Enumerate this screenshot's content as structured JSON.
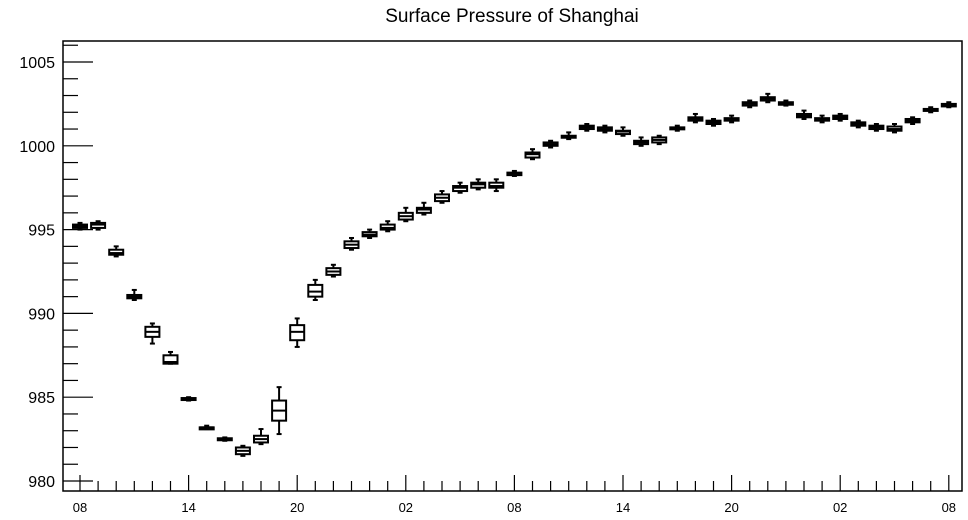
{
  "chart_data": {
    "type": "box",
    "title": "Surface Pressure of Shanghai",
    "xlabel": "",
    "ylabel": "",
    "ylim": [
      980,
      1006.2
    ],
    "y_ticks": [
      980,
      985,
      990,
      995,
      1000,
      1005
    ],
    "x_tick_labels": [
      "08",
      "14",
      "20",
      "02",
      "08",
      "14",
      "20",
      "02",
      "08"
    ],
    "x_tick_positions": [
      0,
      6,
      12,
      18,
      24,
      30,
      36,
      42,
      48
    ],
    "grid": false,
    "legend": "none",
    "boxes": [
      {
        "x": 0,
        "min": 995.0,
        "q1": 995.1,
        "median": 995.2,
        "q3": 995.3,
        "max": 995.4
      },
      {
        "x": 1,
        "min": 995.0,
        "q1": 995.1,
        "median": 995.3,
        "q3": 995.4,
        "max": 995.5
      },
      {
        "x": 2,
        "min": 993.4,
        "q1": 993.5,
        "median": 993.6,
        "q3": 993.8,
        "max": 994.0
      },
      {
        "x": 3,
        "min": 990.8,
        "q1": 990.9,
        "median": 991.0,
        "q3": 991.1,
        "max": 991.4
      },
      {
        "x": 4,
        "min": 988.2,
        "q1": 988.6,
        "median": 988.9,
        "q3": 989.2,
        "max": 989.4
      },
      {
        "x": 5,
        "min": 987.0,
        "q1": 987.0,
        "median": 987.1,
        "q3": 987.5,
        "max": 987.7
      },
      {
        "x": 6,
        "min": 984.8,
        "q1": 984.85,
        "median": 984.9,
        "q3": 984.95,
        "max": 985.0
      },
      {
        "x": 7,
        "min": 983.1,
        "q1": 983.1,
        "median": 983.2,
        "q3": 983.2,
        "max": 983.3
      },
      {
        "x": 8,
        "min": 982.4,
        "q1": 982.45,
        "median": 982.5,
        "q3": 982.55,
        "max": 982.6
      },
      {
        "x": 9,
        "min": 981.5,
        "q1": 981.6,
        "median": 981.8,
        "q3": 982.0,
        "max": 982.1
      },
      {
        "x": 10,
        "min": 982.2,
        "q1": 982.3,
        "median": 982.5,
        "q3": 982.7,
        "max": 983.1
      },
      {
        "x": 11,
        "min": 982.8,
        "q1": 983.6,
        "median": 984.2,
        "q3": 984.8,
        "max": 985.6
      },
      {
        "x": 12,
        "min": 988.0,
        "q1": 988.4,
        "median": 988.9,
        "q3": 989.3,
        "max": 989.7
      },
      {
        "x": 13,
        "min": 990.8,
        "q1": 991.0,
        "median": 991.3,
        "q3": 991.7,
        "max": 992.0
      },
      {
        "x": 14,
        "min": 992.2,
        "q1": 992.3,
        "median": 992.5,
        "q3": 992.7,
        "max": 992.9
      },
      {
        "x": 15,
        "min": 993.8,
        "q1": 993.9,
        "median": 994.1,
        "q3": 994.3,
        "max": 994.5
      },
      {
        "x": 16,
        "min": 994.5,
        "q1": 994.6,
        "median": 994.7,
        "q3": 994.85,
        "max": 995.0
      },
      {
        "x": 17,
        "min": 994.9,
        "q1": 995.0,
        "median": 995.1,
        "q3": 995.3,
        "max": 995.5
      },
      {
        "x": 18,
        "min": 995.5,
        "q1": 995.6,
        "median": 995.8,
        "q3": 996.0,
        "max": 996.3
      },
      {
        "x": 19,
        "min": 995.9,
        "q1": 996.0,
        "median": 996.2,
        "q3": 996.3,
        "max": 996.6
      },
      {
        "x": 20,
        "min": 996.6,
        "q1": 996.7,
        "median": 996.9,
        "q3": 997.1,
        "max": 997.3
      },
      {
        "x": 21,
        "min": 997.2,
        "q1": 997.3,
        "median": 997.5,
        "q3": 997.6,
        "max": 997.8
      },
      {
        "x": 22,
        "min": 997.4,
        "q1": 997.5,
        "median": 997.7,
        "q3": 997.8,
        "max": 998.0
      },
      {
        "x": 23,
        "min": 997.3,
        "q1": 997.5,
        "median": 997.6,
        "q3": 997.8,
        "max": 998.0
      },
      {
        "x": 24,
        "min": 998.2,
        "q1": 998.25,
        "median": 998.35,
        "q3": 998.4,
        "max": 998.5
      },
      {
        "x": 25,
        "min": 999.2,
        "q1": 999.3,
        "median": 999.5,
        "q3": 999.6,
        "max": 999.8
      },
      {
        "x": 26,
        "min": 999.9,
        "q1": 1000.0,
        "median": 1000.1,
        "q3": 1000.2,
        "max": 1000.3
      },
      {
        "x": 27,
        "min": 1000.4,
        "q1": 1000.5,
        "median": 1000.55,
        "q3": 1000.6,
        "max": 1000.8
      },
      {
        "x": 28,
        "min": 1000.9,
        "q1": 1001.0,
        "median": 1001.1,
        "q3": 1001.2,
        "max": 1001.3
      },
      {
        "x": 29,
        "min": 1000.8,
        "q1": 1000.9,
        "median": 1001.0,
        "q3": 1001.1,
        "max": 1001.2
      },
      {
        "x": 30,
        "min": 1000.6,
        "q1": 1000.7,
        "median": 1000.85,
        "q3": 1000.9,
        "max": 1001.1
      },
      {
        "x": 31,
        "min": 1000.0,
        "q1": 1000.1,
        "median": 1000.2,
        "q3": 1000.3,
        "max": 1000.5
      },
      {
        "x": 32,
        "min": 1000.1,
        "q1": 1000.2,
        "median": 1000.35,
        "q3": 1000.5,
        "max": 1000.6
      },
      {
        "x": 33,
        "min": 1000.9,
        "q1": 1001.0,
        "median": 1001.05,
        "q3": 1001.1,
        "max": 1001.2
      },
      {
        "x": 34,
        "min": 1001.4,
        "q1": 1001.5,
        "median": 1001.6,
        "q3": 1001.7,
        "max": 1001.9
      },
      {
        "x": 35,
        "min": 1001.2,
        "q1": 1001.3,
        "median": 1001.4,
        "q3": 1001.5,
        "max": 1001.6
      },
      {
        "x": 36,
        "min": 1001.4,
        "q1": 1001.5,
        "median": 1001.6,
        "q3": 1001.65,
        "max": 1001.8
      },
      {
        "x": 37,
        "min": 1002.3,
        "q1": 1002.4,
        "median": 1002.5,
        "q3": 1002.6,
        "max": 1002.7
      },
      {
        "x": 38,
        "min": 1002.6,
        "q1": 1002.7,
        "median": 1002.8,
        "q3": 1002.9,
        "max": 1003.1
      },
      {
        "x": 39,
        "min": 1002.4,
        "q1": 1002.45,
        "median": 1002.55,
        "q3": 1002.6,
        "max": 1002.7
      },
      {
        "x": 40,
        "min": 1001.6,
        "q1": 1001.7,
        "median": 1001.8,
        "q3": 1001.9,
        "max": 1002.1
      },
      {
        "x": 41,
        "min": 1001.4,
        "q1": 1001.5,
        "median": 1001.6,
        "q3": 1001.65,
        "max": 1001.8
      },
      {
        "x": 42,
        "min": 1001.5,
        "q1": 1001.6,
        "median": 1001.7,
        "q3": 1001.8,
        "max": 1001.9
      },
      {
        "x": 43,
        "min": 1001.1,
        "q1": 1001.2,
        "median": 1001.3,
        "q3": 1001.4,
        "max": 1001.5
      },
      {
        "x": 44,
        "min": 1000.9,
        "q1": 1001.0,
        "median": 1001.1,
        "q3": 1001.2,
        "max": 1001.3
      },
      {
        "x": 45,
        "min": 1000.8,
        "q1": 1000.9,
        "median": 1001.0,
        "q3": 1001.15,
        "max": 1001.3
      },
      {
        "x": 46,
        "min": 1001.3,
        "q1": 1001.4,
        "median": 1001.5,
        "q3": 1001.6,
        "max": 1001.7
      },
      {
        "x": 47,
        "min": 1002.0,
        "q1": 1002.1,
        "median": 1002.15,
        "q3": 1002.2,
        "max": 1002.3
      },
      {
        "x": 48,
        "min": 1002.3,
        "q1": 1002.35,
        "median": 1002.45,
        "q3": 1002.5,
        "max": 1002.6
      }
    ]
  }
}
